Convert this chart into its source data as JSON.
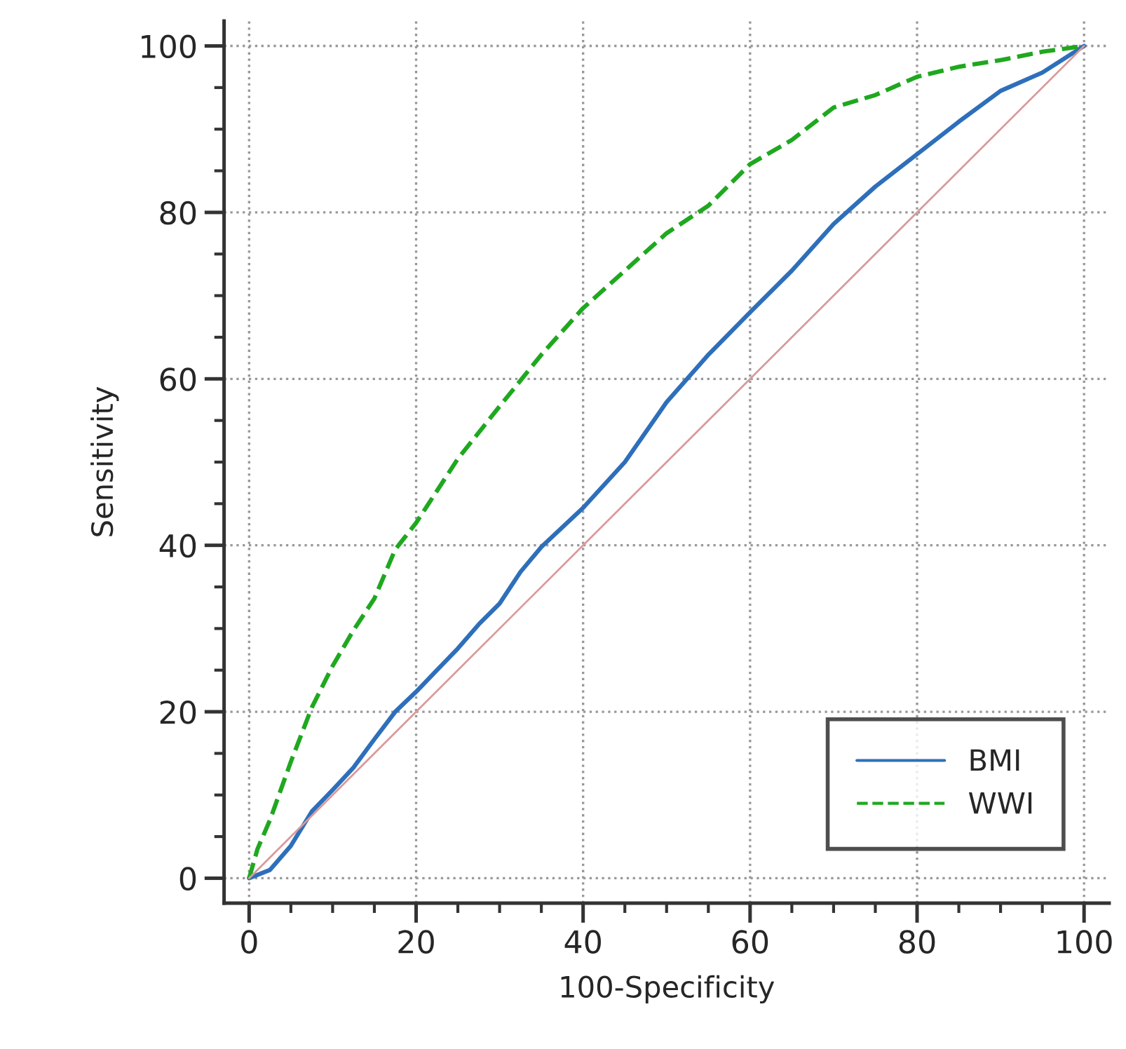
{
  "chart_data": {
    "type": "line",
    "xlabel": "100-Specificity",
    "ylabel": "Sensitivity",
    "xlim": [
      -3,
      103
    ],
    "ylim": [
      -3,
      103
    ],
    "xticks": [
      0,
      20,
      40,
      60,
      80,
      100
    ],
    "yticks": [
      0,
      20,
      40,
      60,
      80,
      100
    ],
    "grid": true,
    "legend": "bottom right",
    "series": [
      {
        "name": "BMI",
        "color": "#2e6fba",
        "line_style": "solid",
        "x": [
          0,
          2.5,
          5,
          7.5,
          10,
          12.5,
          15,
          17.5,
          20,
          22.5,
          25,
          27.5,
          30,
          32.5,
          35,
          40,
          45,
          50,
          55,
          60,
          65,
          70,
          75,
          80,
          85,
          90,
          95,
          100
        ],
        "values": [
          0,
          1,
          3.9,
          8,
          10.6,
          13.3,
          16.7,
          20,
          22.4,
          25,
          27.6,
          30.5,
          33,
          36.8,
          39.8,
          44.5,
          50,
          57.2,
          62.9,
          68,
          73,
          78.6,
          83.1,
          87,
          90.9,
          94.6,
          96.8,
          100
        ]
      },
      {
        "name": "WWI",
        "color": "#1fa81f",
        "line_style": "dashed",
        "x": [
          0,
          1,
          2.5,
          5,
          7.5,
          10,
          12.5,
          15,
          17.5,
          20,
          25,
          30,
          35,
          40,
          45,
          50,
          55,
          60,
          65,
          70,
          75,
          80,
          85,
          90,
          95,
          100
        ],
        "values": [
          0,
          3.5,
          7,
          14,
          20.5,
          25.5,
          29.8,
          33.6,
          39.5,
          42.7,
          50.4,
          56.7,
          62.9,
          68.5,
          73,
          77.5,
          80.8,
          85.8,
          88.7,
          92.6,
          94.1,
          96.3,
          97.5,
          98.3,
          99.3,
          100
        ]
      },
      {
        "color": "#d99a9a",
        "line_style": "solid",
        "x": [
          0,
          100
        ],
        "values": [
          0,
          100
        ]
      }
    ]
  }
}
